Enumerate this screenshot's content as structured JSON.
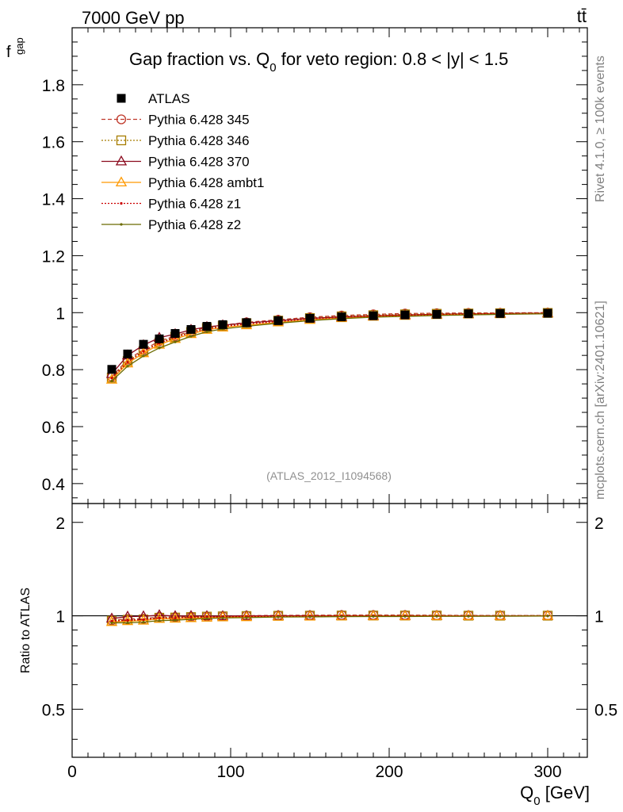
{
  "header": {
    "energy_label": "7000 GeV pp",
    "process_label": "tt̄"
  },
  "side_labels": {
    "rivet_version": "Rivet 4.1.0, ≥ 100k events",
    "source": "mcplots.cern.ch [arXiv:2401.10621]"
  },
  "chart_data": {
    "type": "scatter",
    "title": "Gap fraction vs. Q₀ for veto region: 0.8 < |y| < 1.5",
    "analysis_tag": "(ATLAS_2012_I1094568)",
    "xlabel": "Q₀ [GeV]",
    "ylabel": "f_gap",
    "ylabel_main": "f",
    "ylabel_sub": "gap",
    "ratio_ylabel": "Ratio to ATLAS",
    "xlim": [
      0,
      325
    ],
    "ylim": [
      0.33,
      2.0
    ],
    "ratio_ylim": [
      0.35,
      2.3
    ],
    "x_ticks": [
      0,
      100,
      200,
      300
    ],
    "x_tick_labels": [
      "0",
      "100",
      "200",
      "300"
    ],
    "y_ticks": [
      0.4,
      0.6,
      0.8,
      1.0,
      1.2,
      1.4,
      1.6,
      1.8
    ],
    "y_tick_labels": [
      "0.4",
      "0.6",
      "0.8",
      "1",
      "1.2",
      "1.4",
      "1.6",
      "1.8"
    ],
    "ratio_y_ticks": [
      0.5,
      1,
      2
    ],
    "ratio_y_tick_labels": [
      "0.5",
      "1",
      "2"
    ],
    "x": [
      25,
      35,
      45,
      55,
      65,
      75,
      85,
      95,
      110,
      130,
      150,
      170,
      190,
      210,
      230,
      250,
      270,
      300
    ],
    "series": [
      {
        "name": "ATLAS",
        "color": "#000000",
        "marker": "filled-square",
        "line": "none",
        "values": [
          0.801,
          0.855,
          0.889,
          0.908,
          0.927,
          0.941,
          0.952,
          0.958,
          0.965,
          0.972,
          0.98,
          0.985,
          0.989,
          0.992,
          0.994,
          0.996,
          0.997,
          0.998
        ]
      },
      {
        "name": "Pythia 6.428 345",
        "color": "#c0392b",
        "marker": "open-circle",
        "line": "dashed",
        "values": [
          0.775,
          0.835,
          0.87,
          0.9,
          0.918,
          0.935,
          0.948,
          0.956,
          0.966,
          0.975,
          0.984,
          0.99,
          0.994,
          0.997,
          0.998,
          0.999,
          0.999,
          1.0
        ]
      },
      {
        "name": "Pythia 6.428 346",
        "color": "#a67c00",
        "marker": "open-square",
        "line": "dotted",
        "values": [
          0.772,
          0.83,
          0.865,
          0.895,
          0.915,
          0.932,
          0.946,
          0.954,
          0.963,
          0.972,
          0.981,
          0.987,
          0.991,
          0.994,
          0.996,
          0.997,
          0.998,
          0.999
        ]
      },
      {
        "name": "Pythia 6.428 370",
        "color": "#8b0a1e",
        "marker": "open-triangle",
        "line": "solid",
        "values": [
          0.785,
          0.85,
          0.886,
          0.912,
          0.925,
          0.94,
          0.95,
          0.956,
          0.964,
          0.972,
          0.98,
          0.985,
          0.989,
          0.992,
          0.994,
          0.996,
          0.997,
          0.998
        ]
      },
      {
        "name": "Pythia 6.428 ambt1",
        "color": "#ff9900",
        "marker": "open-triangle",
        "line": "solid",
        "values": [
          0.765,
          0.822,
          0.858,
          0.888,
          0.908,
          0.925,
          0.94,
          0.948,
          0.956,
          0.966,
          0.975,
          0.981,
          0.986,
          0.989,
          0.992,
          0.994,
          0.995,
          0.997
        ]
      },
      {
        "name": "Pythia 6.428 z1",
        "color": "#cc0000",
        "marker": "small-dot",
        "line": "dotted",
        "values": [
          0.77,
          0.826,
          0.864,
          0.893,
          0.912,
          0.93,
          0.943,
          0.951,
          0.96,
          0.969,
          0.978,
          0.984,
          0.988,
          0.991,
          0.993,
          0.995,
          0.996,
          0.998
        ]
      },
      {
        "name": "Pythia 6.428 z2",
        "color": "#6b6b00",
        "marker": "small-dot",
        "line": "solid",
        "values": [
          0.76,
          0.812,
          0.848,
          0.876,
          0.897,
          0.917,
          0.933,
          0.943,
          0.952,
          0.963,
          0.972,
          0.979,
          0.984,
          0.987,
          0.99,
          0.992,
          0.994,
          0.996
        ]
      }
    ]
  }
}
